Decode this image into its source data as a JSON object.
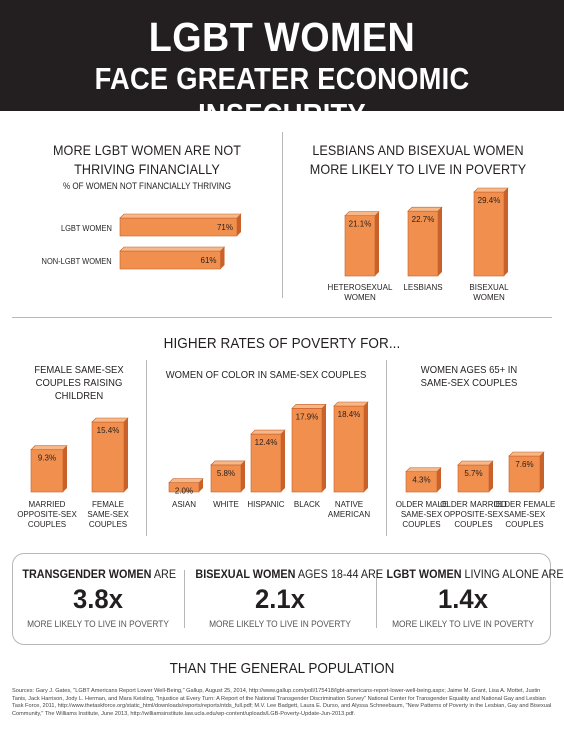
{
  "header": {
    "title_line1": "LGBT WOMEN",
    "title_line2": "FACE GREATER ECONOMIC INSECURITY"
  },
  "colors": {
    "bar_face": "#f18f4e",
    "bar_top": "#f6b889",
    "bar_side": "#c8612a",
    "header_bg": "#231f20"
  },
  "section1": {
    "title": "MORE LGBT WOMEN ARE NOT THRIVING FINANCIALLY",
    "title_l1": "MORE LGBT WOMEN ARE NOT",
    "title_l2": "THRIVING FINANCIALLY",
    "subtitle": "% OF WOMEN NOT FINANCIALLY THRIVING"
  },
  "section2": {
    "title_l1": "LESBIANS AND BISEXUAL WOMEN",
    "title_l2": "MORE LIKELY TO LIVE IN POVERTY"
  },
  "section3": {
    "title": "HIGHER RATES OF POVERTY FOR...",
    "sub_a_l1": "FEMALE SAME-SEX",
    "sub_a_l2": "COUPLES RAISING CHILDREN",
    "sub_b": "WOMEN OF COLOR IN SAME-SEX COUPLES",
    "sub_c_l1": "WOMEN AGES 65+ IN",
    "sub_c_l2": "SAME-SEX COUPLES"
  },
  "chart_data": [
    {
      "type": "bar",
      "orientation": "horizontal",
      "title": "MORE LGBT WOMEN ARE NOT THRIVING FINANCIALLY",
      "subtitle": "% OF WOMEN NOT FINANCIALLY THRIVING",
      "categories": [
        "LGBT WOMEN",
        "NON-LGBT WOMEN"
      ],
      "values": [
        71,
        61
      ],
      "labels": [
        "71%",
        "61%"
      ]
    },
    {
      "type": "bar",
      "title": "LESBIANS AND BISEXUAL WOMEN MORE LIKELY TO LIVE IN POVERTY",
      "categories": [
        "HETEROSEXUAL WOMEN",
        "LESBIANS",
        "BISEXUAL WOMEN"
      ],
      "category_lines": [
        [
          "HETEROSEXUAL",
          "WOMEN"
        ],
        [
          "LESBIANS"
        ],
        [
          "BISEXUAL",
          "WOMEN"
        ]
      ],
      "values": [
        21.1,
        22.7,
        29.4
      ],
      "labels": [
        "21.1%",
        "22.7%",
        "29.4%"
      ]
    },
    {
      "type": "bar",
      "title": "FEMALE SAME-SEX COUPLES RAISING CHILDREN",
      "categories": [
        "MARRIED OPPOSITE-SEX COUPLES",
        "FEMALE SAME-SEX COUPLES"
      ],
      "category_lines": [
        [
          "MARRIED",
          "OPPOSITE-SEX",
          "COUPLES"
        ],
        [
          "FEMALE",
          "SAME-SEX",
          "COUPLES"
        ]
      ],
      "values": [
        9.3,
        15.4
      ],
      "labels": [
        "9.3%",
        "15.4%"
      ]
    },
    {
      "type": "bar",
      "title": "WOMEN OF COLOR IN SAME-SEX COUPLES",
      "categories": [
        "ASIAN",
        "WHITE",
        "HISPANIC",
        "BLACK",
        "NATIVE AMERICAN"
      ],
      "category_lines": [
        [
          "ASIAN"
        ],
        [
          "WHITE"
        ],
        [
          "HISPANIC"
        ],
        [
          "BLACK"
        ],
        [
          "NATIVE",
          "AMERICAN"
        ]
      ],
      "values": [
        2.0,
        5.8,
        12.4,
        17.9,
        18.4
      ],
      "labels": [
        "2.0%",
        "5.8%",
        "12.4%",
        "17.9%",
        "18.4%"
      ]
    },
    {
      "type": "bar",
      "title": "WOMEN AGES 65+ IN SAME-SEX COUPLES",
      "categories": [
        "OLDER MALE SAME-SEX COUPLES",
        "OLDER MARRIED OPPOSITE-SEX COUPLES",
        "OLDER FEMALE SAME-SEX COUPLES"
      ],
      "category_lines": [
        [
          "OLDER MALE",
          "SAME-SEX",
          "COUPLES"
        ],
        [
          "OLDER MARRIED",
          "OPPOSITE-SEX",
          "COUPLES"
        ],
        [
          "OLDER FEMALE",
          "SAME-SEX",
          "COUPLES"
        ]
      ],
      "values": [
        4.3,
        5.7,
        7.6
      ],
      "labels": [
        "4.3%",
        "5.7%",
        "7.6%"
      ]
    }
  ],
  "stats": [
    {
      "bold": "TRANSGENDER WOMEN",
      "rest": " ARE",
      "value": "3.8x",
      "caption": "MORE LIKELY TO LIVE IN POVERTY"
    },
    {
      "bold": "BISEXUAL WOMEN",
      "rest": " AGES 18-44 ARE",
      "value": "2.1x",
      "caption": "MORE LIKELY TO LIVE IN POVERTY"
    },
    {
      "bold": "LGBT WOMEN",
      "rest": " LIVING ALONE ARE",
      "value": "1.4x",
      "caption": "MORE LIKELY TO LIVE IN POVERTY"
    }
  ],
  "footer": {
    "title": "THAN THE GENERAL POPULATION",
    "sources": "Sources: Gary J. Gates, \"LGBT Americans Report Lower Well-Being,\" Gallup, August 25, 2014, http://www.gallup.com/poll/175418/lgbt-americans-report-lower-well-being.aspx; Jaime M. Grant, Lisa A. Mottet, Justin Tanis, Jack Harrison, Jody L. Herman, and Mara Keisling, \"Injustice at Every Turn: A Report of the National Transgender Discrimination Survey\" National Center for Transgender Equality and National Gay and Lesbian Task Force, 2011, http://www.thetaskforce.org/static_html/downloads/reports/reports/ntds_full.pdf; M.V. Lee Badgett, Laura E. Durso, and Alyssa Schneebaum, \"New Patterns of Poverty in the Lesbian, Gay and Bisexual Community,\" The Williams Institute, June 2013, http://williamsinstitute.law.ucla.edu/wp-content/uploads/LGB-Poverty-Update-Jun-2013.pdf."
  }
}
